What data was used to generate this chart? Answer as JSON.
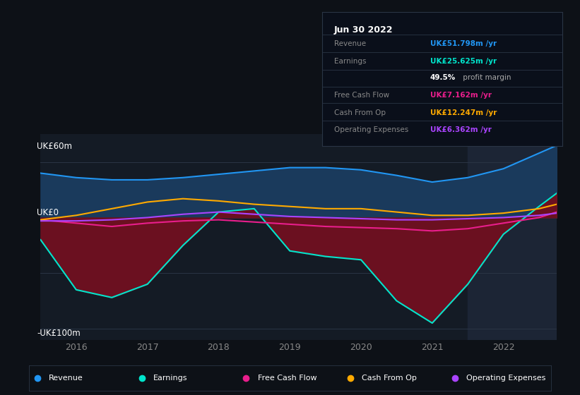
{
  "bg_color": "#0d1117",
  "plot_bg_color": "#141b25",
  "highlight_bg_color": "#1c2535",
  "grid_color": "#2a3545",
  "zero_line_color": "#8888aa",
  "ylabel_top": "UK£60m",
  "ylabel_bottom": "-UK£100m",
  "ylabel_mid": "UK£0",
  "xlim": [
    2015.5,
    2022.75
  ],
  "ylim": [
    -110,
    75
  ],
  "x_ticks": [
    2016,
    2017,
    2018,
    2019,
    2020,
    2021,
    2022
  ],
  "revenue_color": "#2196f3",
  "revenue_fill_color": "#1a3a5c",
  "earnings_color": "#00e5cc",
  "earnings_fill_color": "#6b1020",
  "free_cashflow_color": "#e91e8c",
  "cash_from_op_color": "#ffaa00",
  "operating_exp_color": "#aa44ff",
  "revenue": {
    "x": [
      2015.5,
      2016.0,
      2016.5,
      2017.0,
      2017.5,
      2018.0,
      2018.5,
      2019.0,
      2019.5,
      2020.0,
      2020.5,
      2021.0,
      2021.5,
      2022.0,
      2022.5,
      2022.75
    ],
    "y": [
      40,
      36,
      34,
      34,
      36,
      39,
      42,
      45,
      45,
      43,
      38,
      32,
      36,
      44,
      58,
      65
    ]
  },
  "earnings": {
    "x": [
      2015.5,
      2016.0,
      2016.5,
      2017.0,
      2017.5,
      2018.0,
      2018.5,
      2019.0,
      2019.5,
      2020.0,
      2020.5,
      2021.0,
      2021.5,
      2022.0,
      2022.5,
      2022.75
    ],
    "y": [
      -20,
      -65,
      -72,
      -60,
      -25,
      5,
      8,
      -30,
      -35,
      -38,
      -75,
      -95,
      -60,
      -15,
      10,
      22
    ]
  },
  "free_cashflow": {
    "x": [
      2015.5,
      2016.0,
      2016.5,
      2017.0,
      2017.5,
      2018.0,
      2018.5,
      2019.0,
      2019.5,
      2020.0,
      2020.5,
      2021.0,
      2021.5,
      2022.0,
      2022.5,
      2022.75
    ],
    "y": [
      -2,
      -5,
      -8,
      -5,
      -3,
      -2,
      -4,
      -6,
      -8,
      -9,
      -10,
      -12,
      -10,
      -5,
      0,
      5
    ]
  },
  "cash_from_op": {
    "x": [
      2015.5,
      2016.0,
      2016.5,
      2017.0,
      2017.5,
      2018.0,
      2018.5,
      2019.0,
      2019.5,
      2020.0,
      2020.5,
      2021.0,
      2021.5,
      2022.0,
      2022.5,
      2022.75
    ],
    "y": [
      -2,
      2,
      8,
      14,
      17,
      15,
      12,
      10,
      8,
      8,
      5,
      2,
      2,
      4,
      8,
      12
    ]
  },
  "operating_exp": {
    "x": [
      2015.5,
      2016.0,
      2016.5,
      2017.0,
      2017.5,
      2018.0,
      2018.5,
      2019.0,
      2019.5,
      2020.0,
      2020.5,
      2021.0,
      2021.5,
      2022.0,
      2022.5,
      2022.75
    ],
    "y": [
      -3,
      -3,
      -2,
      0,
      3,
      5,
      3,
      1,
      0,
      -1,
      -2,
      -2,
      -1,
      0,
      2,
      4
    ]
  },
  "info_box": {
    "bg_color": "#0a0f1a",
    "border_color": "#2a3545",
    "title": "Jun 30 2022",
    "row_labels": [
      "Revenue",
      "Earnings",
      "",
      "Free Cash Flow",
      "Cash From Op",
      "Operating Expenses"
    ],
    "row_values": [
      "UK£51.798m /yr",
      "UK£25.625m /yr",
      "49.5% profit margin",
      "UK£7.162m /yr",
      "UK£12.247m /yr",
      "UK£6.362m /yr"
    ],
    "row_colors": [
      "#2196f3",
      "#00e5cc",
      "#aaaaaa",
      "#e91e8c",
      "#ffaa00",
      "#aa44ff"
    ]
  },
  "legend": [
    {
      "label": "Revenue",
      "color": "#2196f3"
    },
    {
      "label": "Earnings",
      "color": "#00e5cc"
    },
    {
      "label": "Free Cash Flow",
      "color": "#e91e8c"
    },
    {
      "label": "Cash From Op",
      "color": "#ffaa00"
    },
    {
      "label": "Operating Expenses",
      "color": "#aa44ff"
    }
  ],
  "highlight_x_start": 2021.5,
  "highlight_x_end": 2022.75
}
